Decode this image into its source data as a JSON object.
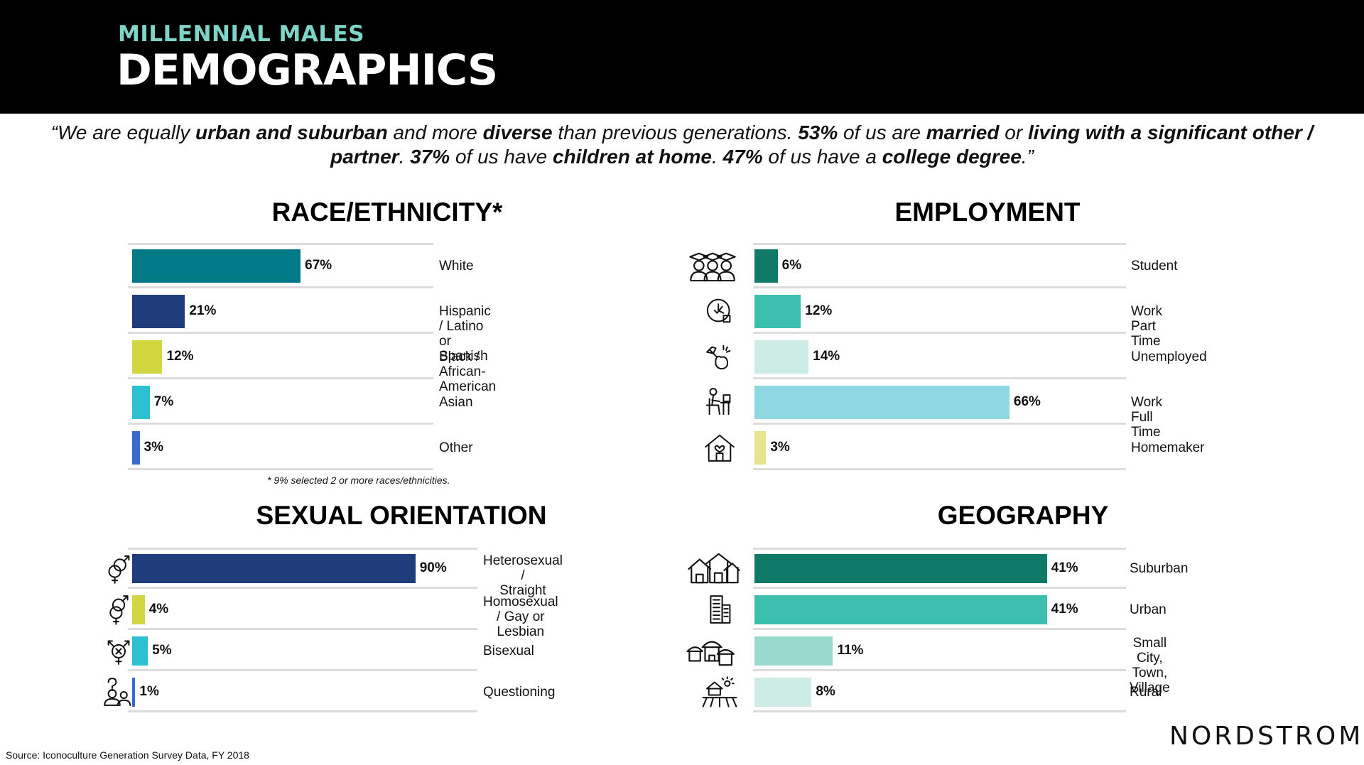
{
  "header": {
    "subtitle": "MILLENNIAL MALES",
    "title": "DEMOGRAPHICS"
  },
  "quote": {
    "line1": [
      {
        "t": "“We are equally ",
        "b": false
      },
      {
        "t": "urban and suburban",
        "b": true
      },
      {
        "t": " and more ",
        "b": false
      },
      {
        "t": "diverse",
        "b": true
      },
      {
        "t": " than previous generations. ",
        "b": false
      },
      {
        "t": "53%",
        "b": true
      },
      {
        "t": " of us are ",
        "b": false
      },
      {
        "t": "married",
        "b": true
      },
      {
        "t": " or ",
        "b": false
      },
      {
        "t": "living with a significant other /",
        "b": true
      }
    ],
    "line2": [
      {
        "t": "partner",
        "b": true
      },
      {
        "t": ". ",
        "b": false
      },
      {
        "t": "37%",
        "b": true
      },
      {
        "t": " of us have ",
        "b": false
      },
      {
        "t": "children at home",
        "b": true
      },
      {
        "t": ". ",
        "b": false
      },
      {
        "t": "47%",
        "b": true
      },
      {
        "t": " of us have a ",
        "b": false
      },
      {
        "t": "college degree",
        "b": true
      },
      {
        "t": ".”",
        "b": false
      }
    ]
  },
  "chart_data": [
    {
      "type": "bar",
      "title": "RACE/ETHNICITY*",
      "categories": [
        "White",
        "Hispanic / Latino or Spanish",
        "Black / African-American",
        "Asian",
        "Other"
      ],
      "values": [
        67,
        21,
        12,
        7,
        3
      ],
      "value_labels": [
        "67%",
        "21%",
        "12%",
        "7%",
        "3%"
      ],
      "colors": [
        "#007a87",
        "#1f3d7a",
        "#d2d640",
        "#2cc0d5",
        "#3a6bc9"
      ],
      "footnote": "* 9% selected 2 or more races/ethnicities."
    },
    {
      "type": "bar",
      "title": "EMPLOYMENT",
      "categories": [
        "Student",
        "Work Part Time",
        "Unemployed",
        "Work Full Time",
        "Homemaker"
      ],
      "values": [
        6,
        12,
        14,
        66,
        3
      ],
      "value_labels": [
        "6%",
        "12%",
        "14%",
        "66%",
        "3%"
      ],
      "colors": [
        "#0f7a68",
        "#3cbfae",
        "#cdece6",
        "#8fd8e3",
        "#e3e68a"
      ],
      "icons": [
        "graduates-icon",
        "part-time-clock-icon",
        "unemployed-icon",
        "desk-worker-icon",
        "home-icon"
      ]
    },
    {
      "type": "bar",
      "title": "SEXUAL ORIENTATION",
      "categories": [
        "Heterosexual / Straight",
        "Homosexual / Gay or Lesbian",
        "Bisexual",
        "Questioning"
      ],
      "category_lines": [
        [
          "Heterosexual /",
          "Straight"
        ],
        [
          "Homosexual / Gay or",
          "Lesbian"
        ],
        [
          "Bisexual"
        ],
        [
          "Questioning"
        ]
      ],
      "values": [
        90,
        4,
        5,
        1
      ],
      "value_labels": [
        "90%",
        "4%",
        "5%",
        "1%"
      ],
      "colors": [
        "#1f3d7a",
        "#d2d640",
        "#2cc0d5",
        "#3a6bc9"
      ],
      "icons": [
        "heterosexual-icon",
        "homosexual-icon",
        "bisexual-icon",
        "questioning-icon"
      ]
    },
    {
      "type": "bar",
      "title": "GEOGRAPHY",
      "categories": [
        "Suburban",
        "Urban",
        "Small City, Town, Village",
        "Rural"
      ],
      "category_lines": [
        [
          "Suburban"
        ],
        [
          "Urban"
        ],
        [
          "Small City, Town,",
          "Village"
        ],
        [
          "Rural"
        ]
      ],
      "values": [
        41,
        41,
        11,
        8
      ],
      "value_labels": [
        "41%",
        "41%",
        "11%",
        "8%"
      ],
      "colors": [
        "#0f7a68",
        "#3cbfae",
        "#9ad9cd",
        "#cdece6"
      ],
      "icons": [
        "suburban-houses-icon",
        "urban-building-icon",
        "village-icon",
        "farm-icon"
      ]
    }
  ],
  "source": "Source: Iconoculture Generation Survey Data, FY 2018",
  "logo": "NORDSTROM"
}
